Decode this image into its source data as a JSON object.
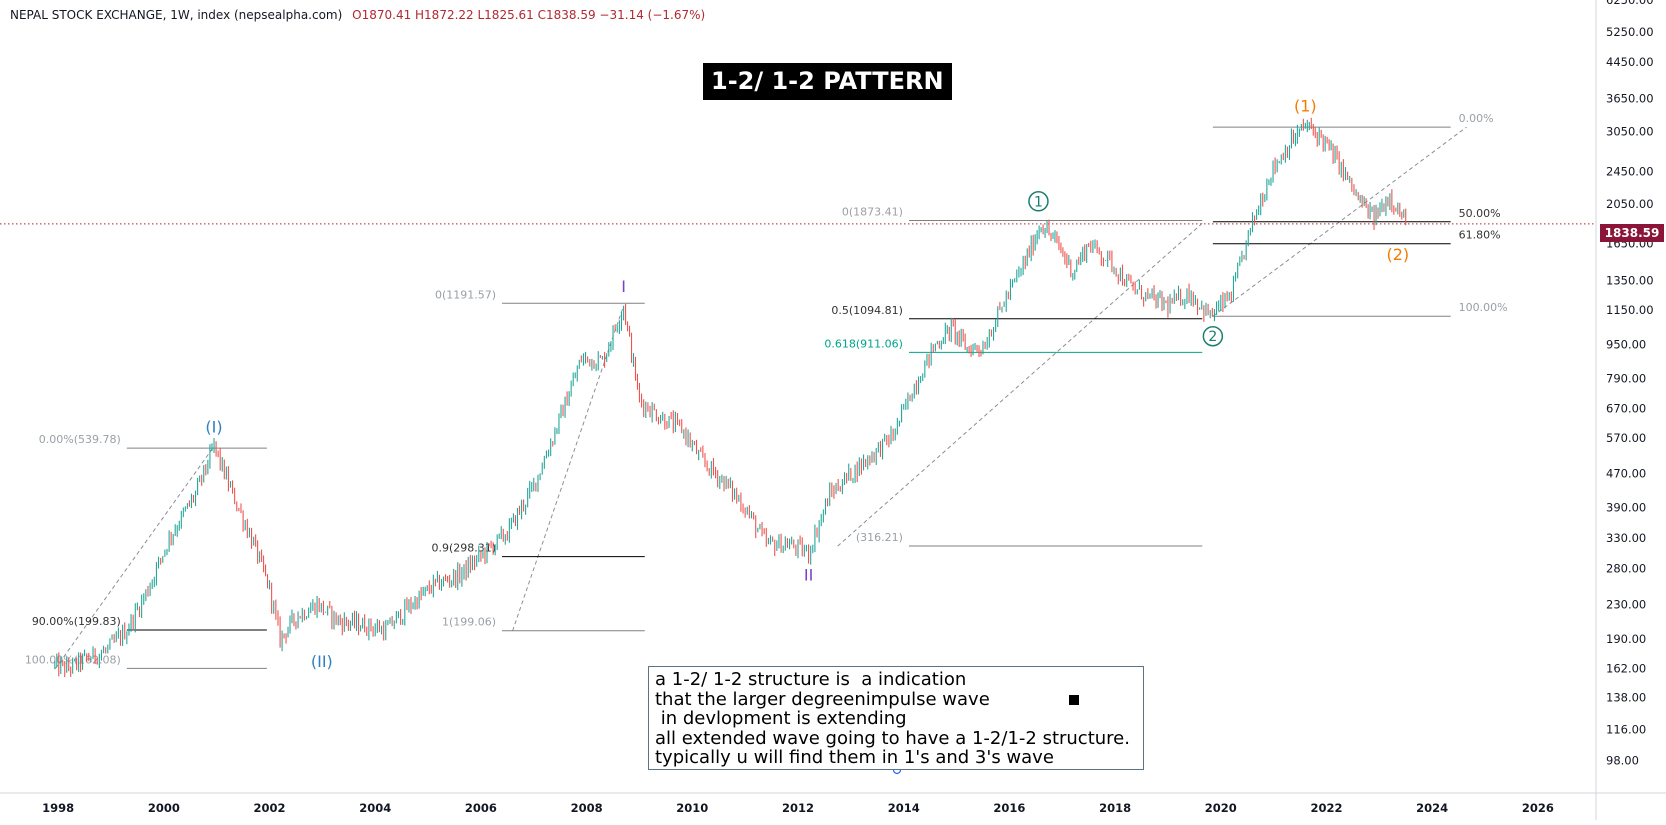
{
  "header": {
    "symbol": "NEPAL STOCK EXCHANGE, 1W, index (nepsealpha.com)",
    "ohlc": "O1870.41  H1872.22  L1825.61  C1838.59  −31.14 (−1.67%)"
  },
  "title": "1-2/ 1-2 PATTERN",
  "note_lines": [
    "a 1-2/ 1-2 structure is  a indication",
    "that the larger degreenimpulse wave",
    " in devlopment is extending",
    "all extended wave going to have a 1-2/1-2 structure.",
    "typically u will find them in 1's and 3's wave"
  ],
  "current_price_label": "1838.59",
  "colors": {
    "up": "#26a69a",
    "down": "#ef5350",
    "price_line": "#b22833",
    "blue_wave": "#2f7fc1",
    "purple_wave": "#7b3fd0",
    "green_wave": "#1a7f6e",
    "orange_wave": "#f57c00",
    "fib_gray": "#9aa0a6",
    "fib_green": "#00a58a"
  },
  "chart_data": {
    "type": "line",
    "title": "1-2/ 1-2 PATTERN",
    "xlabel": "",
    "ylabel": "",
    "x_ticks": [
      "1998",
      "2000",
      "2002",
      "2004",
      "2006",
      "2008",
      "2010",
      "2012",
      "2014",
      "2016",
      "2018",
      "2020",
      "2022",
      "2024",
      "2026"
    ],
    "y_ticks": [
      "6250.00",
      "5250.00",
      "4450.00",
      "3650.00",
      "3050.00",
      "2450.00",
      "2050.00",
      "1650.00",
      "1350.00",
      "1150.00",
      "950.00",
      "790.00",
      "670.00",
      "570.00",
      "470.00",
      "390.00",
      "330.00",
      "280.00",
      "230.00",
      "190.00",
      "162.00",
      "138.00",
      "116.00",
      "98.00"
    ],
    "y_scale": "log",
    "xlim": [
      1996.9,
      2027.1
    ],
    "ylim": [
      82,
      6250
    ],
    "series": [
      {
        "values": [
          [
            1997.9,
            165
          ],
          [
            1998.2,
            162
          ],
          [
            1998.5,
            170
          ],
          [
            1998.9,
            178
          ],
          [
            1999.3,
            200
          ],
          [
            1999.7,
            250
          ],
          [
            2000.1,
            330
          ],
          [
            2000.6,
            420
          ],
          [
            2000.95,
            545
          ],
          [
            2001.3,
            420
          ],
          [
            2001.7,
            320
          ],
          [
            2002.0,
            250
          ],
          [
            2002.2,
            190
          ],
          [
            2002.5,
            215
          ],
          [
            2002.9,
            230
          ],
          [
            2003.3,
            210
          ],
          [
            2003.8,
            205
          ],
          [
            2004.2,
            200
          ],
          [
            2004.6,
            225
          ],
          [
            2005.1,
            255
          ],
          [
            2005.6,
            270
          ],
          [
            2006.0,
            300
          ],
          [
            2006.5,
            340
          ],
          [
            2007.0,
            440
          ],
          [
            2007.4,
            590
          ],
          [
            2007.9,
            880
          ],
          [
            2008.3,
            870
          ],
          [
            2008.7,
            1175
          ],
          [
            2009.0,
            700
          ],
          [
            2009.4,
            640
          ],
          [
            2009.8,
            600
          ],
          [
            2010.2,
            500
          ],
          [
            2010.6,
            450
          ],
          [
            2011.0,
            390
          ],
          [
            2011.4,
            320
          ],
          [
            2011.8,
            320
          ],
          [
            2012.2,
            305
          ],
          [
            2012.6,
            420
          ],
          [
            2013.0,
            470
          ],
          [
            2013.4,
            520
          ],
          [
            2013.8,
            580
          ],
          [
            2014.2,
            760
          ],
          [
            2014.6,
            950
          ],
          [
            2014.9,
            1040
          ],
          [
            2015.2,
            930
          ],
          [
            2015.5,
            940
          ],
          [
            2015.9,
            1200
          ],
          [
            2016.3,
            1500
          ],
          [
            2016.6,
            1845
          ],
          [
            2016.9,
            1650
          ],
          [
            2017.2,
            1420
          ],
          [
            2017.5,
            1650
          ],
          [
            2017.9,
            1500
          ],
          [
            2018.3,
            1300
          ],
          [
            2018.7,
            1220
          ],
          [
            2019.0,
            1180
          ],
          [
            2019.4,
            1260
          ],
          [
            2019.8,
            1110
          ],
          [
            2020.2,
            1250
          ],
          [
            2020.6,
            1850
          ],
          [
            2020.95,
            2450
          ],
          [
            2021.3,
            2850
          ],
          [
            2021.6,
            3150
          ],
          [
            2021.9,
            2950
          ],
          [
            2022.2,
            2600
          ],
          [
            2022.6,
            2100
          ],
          [
            2022.9,
            1900
          ],
          [
            2023.2,
            2150
          ],
          [
            2023.5,
            1840
          ]
        ]
      }
    ],
    "wave_labels": [
      {
        "label": "(I)",
        "x": 2000.95,
        "y": 545,
        "color": "blue_wave",
        "style": "text",
        "pos": "above"
      },
      {
        "label": "(II)",
        "x": 2002.99,
        "y": 190,
        "color": "blue_wave",
        "style": "text",
        "pos": "below"
      },
      {
        "label": "I",
        "x": 2008.7,
        "y": 1175,
        "color": "purple_wave",
        "style": "text",
        "pos": "above"
      },
      {
        "label": "II",
        "x": 2012.2,
        "y": 305,
        "color": "purple_wave",
        "style": "text",
        "pos": "below"
      },
      {
        "label": "1",
        "x": 2016.55,
        "y": 1845,
        "color": "green_wave",
        "style": "circle",
        "pos": "above"
      },
      {
        "label": "2",
        "x": 2019.85,
        "y": 1110,
        "color": "green_wave",
        "style": "circle",
        "pos": "below"
      },
      {
        "label": "(1)",
        "x": 2021.6,
        "y": 3150,
        "color": "orange_wave",
        "style": "text",
        "pos": "above"
      },
      {
        "label": "(2)",
        "x": 2023.35,
        "y": 1760,
        "color": "orange_wave",
        "style": "text",
        "pos": "below"
      }
    ],
    "fib_levels": [
      {
        "label": "0.00%(539.78)",
        "y": 539.78,
        "x_from": 1999.3,
        "x_to": 2001.95,
        "color": "fib_gray",
        "line": "#808080",
        "label_side": "left"
      },
      {
        "label": "90.00%(199.83)",
        "y": 199.83,
        "x_from": 1999.3,
        "x_to": 2001.95,
        "color": "#333333",
        "line": "#000000",
        "label_side": "left"
      },
      {
        "label": "100.00%(162.08)",
        "y": 162.08,
        "x_from": 1999.3,
        "x_to": 2001.95,
        "color": "fib_gray",
        "line": "#808080",
        "label_side": "left"
      },
      {
        "label": "0(1191.57)",
        "y": 1191.57,
        "x_from": 2006.4,
        "x_to": 2009.1,
        "color": "fib_gray",
        "line": "#808080",
        "label_side": "left"
      },
      {
        "label": "0.9(298.31)",
        "y": 298.31,
        "x_from": 2006.4,
        "x_to": 2009.1,
        "color": "#333333",
        "line": "#000000",
        "label_side": "left"
      },
      {
        "label": "1(199.06)",
        "y": 199.06,
        "x_from": 2006.4,
        "x_to": 2009.1,
        "color": "fib_gray",
        "line": "#808080",
        "label_side": "left"
      },
      {
        "label": "0(1873.41)",
        "y": 1873.41,
        "x_from": 2014.1,
        "x_to": 2019.65,
        "color": "fib_gray",
        "line": "#808080",
        "label_side": "left"
      },
      {
        "label": "0.5(1094.81)",
        "y": 1094.81,
        "x_from": 2014.1,
        "x_to": 2019.65,
        "color": "#333333",
        "line": "#000000",
        "label_side": "left"
      },
      {
        "label": "0.618(911.06)",
        "y": 911.06,
        "x_from": 2014.1,
        "x_to": 2019.65,
        "color": "fib_green",
        "line": "#00a58a",
        "label_side": "left"
      },
      {
        "label": "(316.21)",
        "y": 316.21,
        "x_from": 2014.1,
        "x_to": 2019.65,
        "color": "fib_gray",
        "line": "#808080",
        "label_side": "left"
      },
      {
        "label": "0.00%",
        "y": 3120,
        "x_from": 2019.85,
        "x_to": 2024.35,
        "color": "fib_gray",
        "line": "#808080",
        "label_side": "right"
      },
      {
        "label": "50.00%",
        "y": 1860,
        "x_from": 2019.85,
        "x_to": 2024.35,
        "color": "#333333",
        "line": "#000000",
        "label_side": "right"
      },
      {
        "label": "61.80%",
        "y": 1650,
        "x_from": 2019.85,
        "x_to": 2024.35,
        "color": "#333333",
        "line": "#000000",
        "label_side": "right"
      },
      {
        "label": "100.00%",
        "y": 1110,
        "x_from": 2019.85,
        "x_to": 2024.35,
        "color": "fib_gray",
        "line": "#808080",
        "label_side": "right"
      }
    ],
    "trend_lines": [
      [
        [
          1997.95,
          162
        ],
        [
          2000.95,
          545
        ]
      ],
      [
        [
          2006.6,
          199
        ],
        [
          2008.7,
          1175
        ]
      ],
      [
        [
          2012.75,
          316
        ],
        [
          2019.65,
          1845
        ]
      ],
      [
        [
          2019.85,
          1110
        ],
        [
          2024.65,
          3120
        ]
      ]
    ],
    "current_price": 1838.59
  }
}
